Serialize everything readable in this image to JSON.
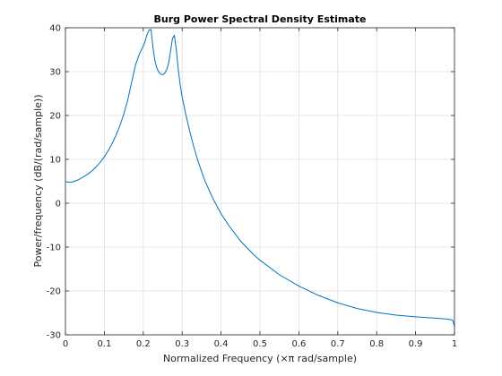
{
  "chart_data": {
    "type": "line",
    "title": "Burg Power Spectral Density Estimate",
    "xlabel": "Normalized Frequency  (×π rad/sample)",
    "ylabel": "Power/frequency (dB/(rad/sample))",
    "xlim": [
      0,
      1
    ],
    "ylim": [
      -30,
      40
    ],
    "xticks": [
      0,
      0.1,
      0.2,
      0.3,
      0.4,
      0.5,
      0.6,
      0.7,
      0.8,
      0.9,
      1
    ],
    "xtick_labels": [
      "0",
      "0.1",
      "0.2",
      "0.3",
      "0.4",
      "0.5",
      "0.6",
      "0.7",
      "0.8",
      "0.9",
      "1"
    ],
    "yticks": [
      -30,
      -20,
      -10,
      0,
      10,
      20,
      30,
      40
    ],
    "ytick_labels": [
      "-30",
      "-20",
      "-10",
      "0",
      "10",
      "20",
      "30",
      "40"
    ],
    "grid": true,
    "line_color": "#0072BD",
    "series": [
      {
        "x": [
          0,
          0.01,
          0.02,
          0.03,
          0.04,
          0.05,
          0.06,
          0.07,
          0.08,
          0.09,
          0.1,
          0.11,
          0.12,
          0.13,
          0.14,
          0.15,
          0.16,
          0.17,
          0.18,
          0.19,
          0.2,
          0.205,
          0.21,
          0.215,
          0.22,
          0.225,
          0.23,
          0.235,
          0.24,
          0.245,
          0.25,
          0.255,
          0.26,
          0.265,
          0.27,
          0.275,
          0.28,
          0.285,
          0.29,
          0.295,
          0.3,
          0.31,
          0.32,
          0.33,
          0.34,
          0.35,
          0.36,
          0.38,
          0.4,
          0.42,
          0.45,
          0.48,
          0.5,
          0.55,
          0.6,
          0.65,
          0.7,
          0.75,
          0.8,
          0.85,
          0.9,
          0.95,
          0.98,
          0.995,
          1.0
        ],
        "y": [
          4.9,
          4.8,
          4.9,
          5.2,
          5.7,
          6.2,
          6.8,
          7.5,
          8.4,
          9.4,
          10.6,
          12.0,
          13.6,
          15.5,
          17.7,
          20.3,
          23.5,
          27.5,
          31.5,
          34.0,
          35.8,
          37.0,
          38.5,
          39.5,
          39.6,
          35.5,
          32.5,
          30.8,
          29.9,
          29.4,
          29.3,
          29.6,
          30.4,
          31.8,
          34.5,
          37.5,
          38.3,
          35.0,
          30.5,
          27.0,
          24.2,
          20.0,
          16.2,
          12.8,
          9.8,
          7.2,
          4.8,
          0.9,
          -2.4,
          -5.1,
          -8.6,
          -11.4,
          -13.0,
          -16.3,
          -18.9,
          -21.0,
          -22.7,
          -24.0,
          -24.9,
          -25.5,
          -25.9,
          -26.2,
          -26.4,
          -26.6,
          -28.0
        ]
      }
    ]
  }
}
